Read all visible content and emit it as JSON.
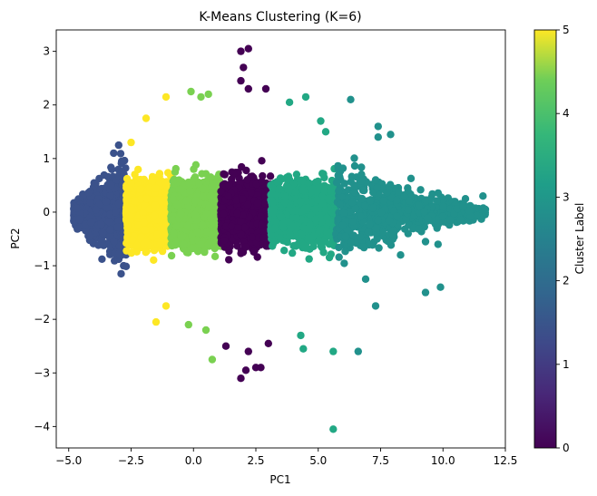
{
  "chart_data": {
    "type": "scatter",
    "title": "K-Means Clustering (K=6)",
    "xlabel": "PC1",
    "ylabel": "PC2",
    "xlim": [
      -5.5,
      12.5
    ],
    "ylim": [
      -4.4,
      3.4
    ],
    "xticks": [
      "−5.0",
      "−2.5",
      "0.0",
      "2.5",
      "5.0",
      "7.5",
      "10.0",
      "12.5"
    ],
    "yticks": [
      "−4",
      "−3",
      "−2",
      "−1",
      "0",
      "1",
      "2",
      "3"
    ],
    "grid": false,
    "colormap": "viridis",
    "colorbar": {
      "label": "Cluster Label",
      "range": [
        0,
        5
      ],
      "ticks": [
        "0",
        "1",
        "2",
        "3",
        "4",
        "5"
      ]
    },
    "cluster_colors": {
      "0": "#440154",
      "1": "#3b528b",
      "2": "#21918c",
      "3": "#22a884",
      "4": "#7ad151",
      "5": "#fde725"
    },
    "clusters": [
      {
        "label": 1,
        "x_range": [
          -4.8,
          -2.7
        ],
        "y_spread": 1.35,
        "core_y": 0.35,
        "approx_points": 900
      },
      {
        "label": 5,
        "x_range": [
          -2.7,
          -0.9
        ],
        "y_spread": 2.2,
        "core_y": 0.75,
        "approx_points": 1400
      },
      {
        "label": 4,
        "x_range": [
          -0.9,
          1.1
        ],
        "y_spread": 2.25,
        "core_y": 0.85,
        "approx_points": 1400
      },
      {
        "label": 0,
        "x_range": [
          1.1,
          3.1
        ],
        "y_spread": 3.1,
        "core_y": 0.85,
        "approx_points": 1300
      },
      {
        "label": 3,
        "x_range": [
          3.1,
          5.7
        ],
        "y_spread": 2.6,
        "core_y": 0.8,
        "approx_points": 1300
      },
      {
        "label": 2,
        "x_range": [
          5.7,
          11.7
        ],
        "y_spread": 2.1,
        "core_y": 0.5,
        "approx_points": 900
      }
    ],
    "outliers": [
      {
        "x": 1.9,
        "y": 3.0,
        "label": 0
      },
      {
        "x": 2.2,
        "y": 3.05,
        "label": 0
      },
      {
        "x": 2.0,
        "y": 2.7,
        "label": 0
      },
      {
        "x": 2.2,
        "y": 2.3,
        "label": 0
      },
      {
        "x": 2.9,
        "y": 2.3,
        "label": 0
      },
      {
        "x": 1.9,
        "y": 2.45,
        "label": 0
      },
      {
        "x": 1.9,
        "y": -3.1,
        "label": 0
      },
      {
        "x": 2.5,
        "y": -2.9,
        "label": 0
      },
      {
        "x": 2.7,
        "y": -2.9,
        "label": 0
      },
      {
        "x": 1.3,
        "y": -2.5,
        "label": 0
      },
      {
        "x": 2.2,
        "y": -2.6,
        "label": 0
      },
      {
        "x": 3.0,
        "y": -2.45,
        "label": 0
      },
      {
        "x": 2.1,
        "y": -2.95,
        "label": 0
      },
      {
        "x": 5.6,
        "y": -4.05,
        "label": 3
      },
      {
        "x": 5.6,
        "y": -2.6,
        "label": 3
      },
      {
        "x": 4.4,
        "y": -2.55,
        "label": 3
      },
      {
        "x": 4.3,
        "y": -2.3,
        "label": 3
      },
      {
        "x": 4.5,
        "y": 2.15,
        "label": 3
      },
      {
        "x": 3.85,
        "y": 2.05,
        "label": 3
      },
      {
        "x": 5.1,
        "y": 1.7,
        "label": 3
      },
      {
        "x": 5.3,
        "y": 1.5,
        "label": 3
      },
      {
        "x": 0.75,
        "y": -2.75,
        "label": 4
      },
      {
        "x": -0.2,
        "y": -2.1,
        "label": 4
      },
      {
        "x": 0.5,
        "y": -2.2,
        "label": 4
      },
      {
        "x": -0.1,
        "y": 2.25,
        "label": 4
      },
      {
        "x": 0.6,
        "y": 2.2,
        "label": 4
      },
      {
        "x": 0.3,
        "y": 2.15,
        "label": 4
      },
      {
        "x": -1.5,
        "y": -2.05,
        "label": 5
      },
      {
        "x": -1.1,
        "y": -1.75,
        "label": 5
      },
      {
        "x": -1.1,
        "y": 2.15,
        "label": 5
      },
      {
        "x": -1.9,
        "y": 1.75,
        "label": 5
      },
      {
        "x": -2.5,
        "y": 1.3,
        "label": 5
      },
      {
        "x": -2.8,
        "y": -1.0,
        "label": 1
      },
      {
        "x": -2.9,
        "y": -1.15,
        "label": 1
      },
      {
        "x": -3.2,
        "y": 1.1,
        "label": 1
      },
      {
        "x": -3.0,
        "y": 1.25,
        "label": 1
      },
      {
        "x": 6.3,
        "y": 2.1,
        "label": 2
      },
      {
        "x": 7.4,
        "y": 1.6,
        "label": 2
      },
      {
        "x": 7.4,
        "y": 1.4,
        "label": 2
      },
      {
        "x": 7.9,
        "y": 1.45,
        "label": 2
      },
      {
        "x": 6.6,
        "y": -2.6,
        "label": 2
      },
      {
        "x": 7.3,
        "y": -1.75,
        "label": 2
      },
      {
        "x": 9.3,
        "y": -1.5,
        "label": 2
      },
      {
        "x": 9.9,
        "y": -1.4,
        "label": 2
      },
      {
        "x": 11.7,
        "y": 0.05,
        "label": 2
      },
      {
        "x": 11.6,
        "y": 0.3,
        "label": 2
      },
      {
        "x": 10.8,
        "y": 0.1,
        "label": 2
      },
      {
        "x": 10.9,
        "y": 0.25,
        "label": 2
      },
      {
        "x": 10.3,
        "y": -0.15,
        "label": 2
      },
      {
        "x": 9.8,
        "y": -0.6,
        "label": 2
      },
      {
        "x": 9.3,
        "y": -0.55,
        "label": 2
      },
      {
        "x": 6.9,
        "y": -1.25,
        "label": 2
      },
      {
        "x": 8.3,
        "y": -0.8,
        "label": 2
      },
      {
        "x": 8.6,
        "y": -0.4,
        "label": 2
      }
    ]
  }
}
